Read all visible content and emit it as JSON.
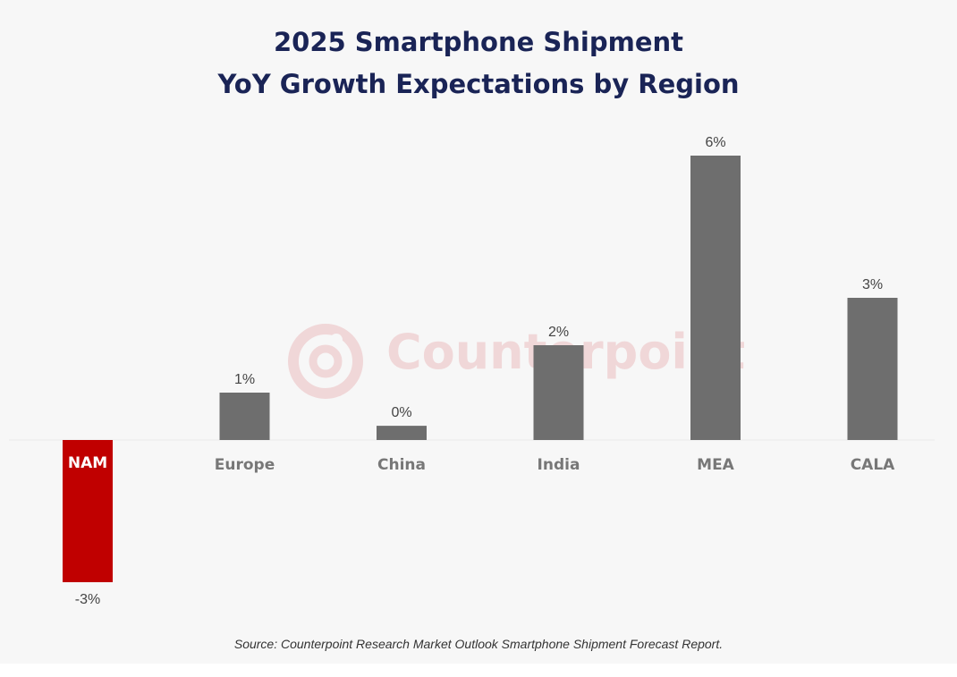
{
  "title_lines": [
    "2025 Smartphone Shipment",
    "YoY Growth Expectations by Region"
  ],
  "watermark": "Counterpoint",
  "source": "Source: Counterpoint Research Market Outlook Smartphone Shipment Forecast Report.",
  "colors": {
    "bar": "#6e6e6e",
    "negative_bar": "#c00000",
    "title": "#1a2456",
    "watermark": "#e0868a"
  },
  "chart_data": {
    "type": "bar",
    "title": "2025 Smartphone Shipment YoY Growth Expectations by Region",
    "categories": [
      "NAM",
      "Europe",
      "China",
      "India",
      "MEA",
      "CALA"
    ],
    "values": [
      -3,
      1,
      0.3,
      2,
      6,
      3
    ],
    "data_labels": [
      "-3%",
      "1%",
      "0%",
      "2%",
      "6%",
      "3%"
    ],
    "highlight": "NAM",
    "xlabel": "",
    "ylabel": "",
    "ylim": [
      -3,
      6
    ],
    "grid": false,
    "legend": "none"
  }
}
